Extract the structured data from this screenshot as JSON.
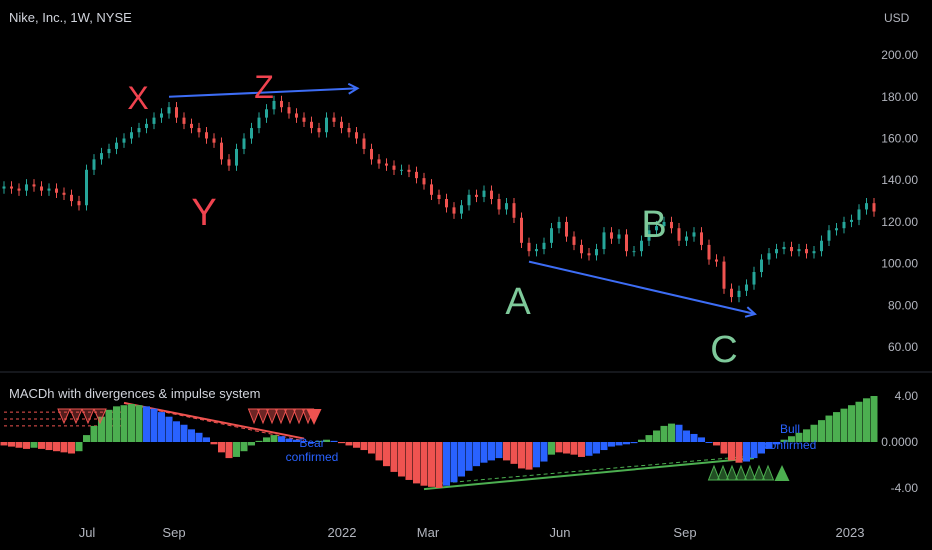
{
  "header": {
    "symbol_title": "Nike, Inc., 1W, NYSE",
    "currency": "USD",
    "indicator_title": "MACDh with divergences & impulse system"
  },
  "colors": {
    "background": "#000000",
    "up": "#4caf50",
    "down": "#ef5350",
    "neutral": "#2962ff",
    "price_up": "#26a69a",
    "price_down": "#ef5350",
    "arrow": "#3d6df5",
    "label_red": "#f0434f",
    "label_green": "#7ec99a",
    "axis_text": "#b2b5be",
    "separator": "#2a2e39"
  },
  "chart_data": [
    {
      "type": "candlestick",
      "title": "Nike, Inc., 1W, NYSE",
      "ylabel": "USD",
      "ylim": [
        50,
        212
      ],
      "yticks": [
        "200.00",
        "180.00",
        "160.00",
        "140.00",
        "120.00",
        "100.00",
        "80.00",
        "60.00"
      ],
      "xticks": [
        "Jul",
        "Sep",
        "2022",
        "Mar",
        "Jun",
        "Sep",
        "2023"
      ],
      "close": [
        137,
        136,
        135,
        138,
        137,
        135,
        136,
        134,
        133,
        130,
        128,
        145,
        150,
        153,
        155,
        158,
        160,
        163,
        165,
        167,
        170,
        172,
        175,
        170,
        167,
        165,
        163,
        160,
        158,
        150,
        147,
        155,
        160,
        165,
        170,
        174,
        178,
        175,
        172,
        170,
        168,
        165,
        163,
        170,
        168,
        165,
        163,
        160,
        155,
        150,
        148,
        147,
        145,
        145,
        144,
        141,
        138,
        133,
        131,
        127,
        124,
        128,
        133,
        132,
        135,
        131,
        126,
        129,
        122,
        110,
        106,
        107,
        110,
        117,
        120,
        113,
        109,
        105,
        104,
        107,
        115,
        112,
        114,
        106,
        106,
        111,
        116,
        118,
        120,
        117,
        111,
        113,
        115,
        109,
        102,
        101,
        88,
        84,
        87,
        90,
        96,
        102,
        105,
        107,
        108,
        106,
        107,
        105,
        106,
        111,
        116,
        117,
        120,
        121,
        126,
        129,
        125
      ],
      "annotations": {
        "points": [
          {
            "label": "X",
            "color": "label_red"
          },
          {
            "label": "Z",
            "color": "label_red"
          },
          {
            "label": "Y",
            "color": "label_red"
          },
          {
            "label": "A",
            "color": "label_green"
          },
          {
            "label": "B",
            "color": "label_green"
          },
          {
            "label": "C",
            "color": "label_green"
          }
        ],
        "arrows": [
          {
            "from_bar": 22,
            "to_bar": 47,
            "from_value": 180,
            "to_value": 184
          },
          {
            "from_bar": 70,
            "to_bar": 100,
            "from_value": 101,
            "to_value": 76
          }
        ]
      }
    },
    {
      "type": "bar",
      "title": "MACDh with divergences & impulse system",
      "ylim": [
        -5,
        5
      ],
      "yticks": [
        "4.00",
        "0.0000",
        "-4.00"
      ],
      "values": [
        -0.3,
        -0.4,
        -0.5,
        -0.6,
        -0.5,
        -0.6,
        -0.7,
        -0.8,
        -0.9,
        -1.0,
        -0.8,
        0.6,
        1.4,
        2.2,
        2.8,
        3.1,
        3.2,
        3.3,
        3.2,
        3.1,
        2.9,
        2.6,
        2.2,
        1.8,
        1.5,
        1.1,
        0.8,
        0.4,
        -0.2,
        -0.9,
        -1.4,
        -1.3,
        -0.8,
        -0.3,
        0.1,
        0.4,
        0.6,
        0.5,
        0.3,
        0.2,
        0.1,
        0.0,
        0.1,
        0.2,
        0.1,
        -0.1,
        -0.3,
        -0.5,
        -0.7,
        -1.0,
        -1.6,
        -2.1,
        -2.6,
        -3.0,
        -3.3,
        -3.6,
        -3.8,
        -3.9,
        -4.0,
        -3.8,
        -3.5,
        -3.0,
        -2.5,
        -2.1,
        -1.8,
        -1.6,
        -1.4,
        -1.6,
        -1.9,
        -2.3,
        -2.4,
        -2.2,
        -1.7,
        -1.1,
        -0.9,
        -1.0,
        -1.1,
        -1.3,
        -1.2,
        -1.0,
        -0.7,
        -0.4,
        -0.3,
        -0.2,
        -0.1,
        0.2,
        0.6,
        1.0,
        1.4,
        1.6,
        1.5,
        1.0,
        0.7,
        0.4,
        0.0,
        -0.3,
        -1.0,
        -1.6,
        -1.8,
        -1.7,
        -1.4,
        -1.0,
        -0.6,
        -0.2,
        0.2,
        0.5,
        0.8,
        1.1,
        1.5,
        1.9,
        2.3,
        2.6,
        2.9,
        3.2,
        3.5,
        3.8,
        4.0
      ],
      "impulse": [
        "d",
        "d",
        "d",
        "d",
        "u",
        "d",
        "d",
        "d",
        "d",
        "d",
        "u",
        "u",
        "u",
        "u",
        "u",
        "u",
        "u",
        "u",
        "u",
        "n",
        "n",
        "n",
        "n",
        "n",
        "n",
        "n",
        "n",
        "n",
        "d",
        "d",
        "d",
        "u",
        "u",
        "u",
        "u",
        "u",
        "u",
        "n",
        "n",
        "n",
        "n",
        "n",
        "u",
        "u",
        "n",
        "d",
        "d",
        "d",
        "d",
        "d",
        "d",
        "d",
        "d",
        "d",
        "d",
        "d",
        "d",
        "d",
        "d",
        "n",
        "n",
        "n",
        "n",
        "n",
        "n",
        "n",
        "n",
        "d",
        "d",
        "d",
        "d",
        "n",
        "n",
        "u",
        "d",
        "d",
        "d",
        "d",
        "n",
        "n",
        "n",
        "n",
        "n",
        "n",
        "n",
        "u",
        "u",
        "u",
        "u",
        "u",
        "n",
        "n",
        "n",
        "n",
        "n",
        "d",
        "d",
        "d",
        "d",
        "n",
        "n",
        "n",
        "n",
        "n",
        "u",
        "u",
        "u",
        "u",
        "u",
        "u",
        "u",
        "u",
        "u",
        "u",
        "u",
        "u",
        "u"
      ],
      "annotations": [
        {
          "text_line1": "Bear",
          "text_line2": "confirmed"
        },
        {
          "text_line1": "Bull",
          "text_line2": "confirmed"
        }
      ]
    }
  ]
}
